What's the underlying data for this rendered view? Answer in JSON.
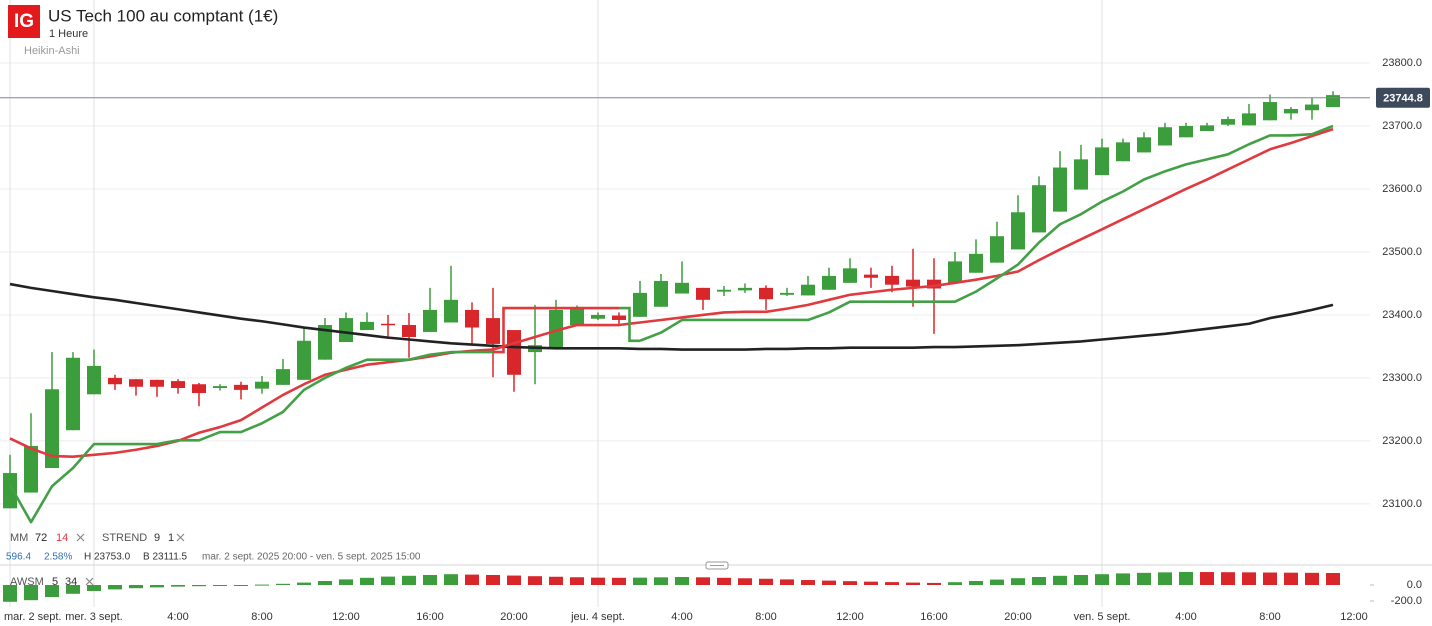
{
  "chart_data": {
    "type": "candlestick",
    "logo": "IG",
    "title": "US Tech 100 au comptant (1€)",
    "subtitle": "1 Heure",
    "chart_style": "Heikin-Ashi",
    "info": [
      "596.4",
      "2.58%",
      "H 23753.0",
      "B 23111.5",
      "mar. 2 sept. 2025 20:00 - ven. 5 sept. 2025 15:00"
    ],
    "legend": [
      {
        "name": "MM",
        "params": [
          "72",
          "14"
        ]
      },
      {
        "name": "STREND",
        "params": [
          "9",
          "1"
        ]
      }
    ],
    "categories": [
      "mar. 2 sept.",
      null,
      null,
      null,
      "mer. 3 sept.",
      null,
      null,
      null,
      "4:00",
      null,
      null,
      null,
      "8:00",
      null,
      null,
      null,
      "12:00",
      null,
      null,
      null,
      "16:00",
      null,
      null,
      null,
      "20:00",
      null,
      null,
      null,
      "jeu. 4 sept.",
      null,
      null,
      null,
      "4:00",
      null,
      null,
      null,
      "8:00",
      null,
      null,
      null,
      "12:00",
      null,
      null,
      null,
      "16:00",
      null,
      null,
      null,
      "20:00",
      null,
      null,
      null,
      "ven. 5 sept.",
      null,
      null,
      null,
      "4:00",
      null,
      null,
      null,
      "8:00",
      null,
      null,
      null,
      "12:00"
    ],
    "open": [
      23093,
      23118,
      23157,
      23217,
      23274,
      23300,
      23298,
      23297,
      23295,
      23290,
      23284,
      23289,
      23283,
      23289,
      23297,
      23329,
      23357,
      23376,
      23386,
      23384,
      23373,
      23388,
      23408,
      23395,
      23376,
      23341,
      23348,
      23384,
      23394,
      23399,
      23397,
      23413,
      23434,
      23443,
      23437,
      23439,
      23443,
      23432,
      23431,
      23440,
      23451,
      23464,
      23462,
      23456,
      23456,
      23451,
      23467,
      23483,
      23504,
      23531,
      23564,
      23599,
      23622,
      23644,
      23658,
      23669,
      23682,
      23692,
      23702,
      23701,
      23709,
      23720,
      23725,
      23730,
      null
    ],
    "high": [
      23178,
      23244,
      23341,
      23341,
      23345,
      23305,
      23298,
      23297,
      23298,
      23292,
      23290,
      23294,
      23303,
      23330,
      23380,
      23395,
      23404,
      23404,
      23400,
      23403,
      23443,
      23478,
      23420,
      23443,
      23376,
      23416,
      23424,
      23415,
      23404,
      23404,
      23454,
      23465,
      23485,
      23443,
      23446,
      23450,
      23447,
      23443,
      23462,
      23475,
      23490,
      23475,
      23478,
      23505,
      23490,
      23500,
      23520,
      23548,
      23590,
      23620,
      23660,
      23670,
      23680,
      23680,
      23690,
      23705,
      23705,
      23705,
      23715,
      23735,
      23750,
      23730,
      23745,
      23755,
      null
    ],
    "low": [
      23093,
      23118,
      23157,
      23217,
      23274,
      23281,
      23272,
      23270,
      23275,
      23255,
      23280,
      23266,
      23275,
      23289,
      23297,
      23329,
      23357,
      23376,
      23362,
      23332,
      23373,
      23388,
      23353,
      23301,
      23278,
      23290,
      23348,
      23384,
      23392,
      23385,
      23397,
      23413,
      23434,
      23408,
      23430,
      23435,
      23408,
      23430,
      23431,
      23440,
      23451,
      23443,
      23436,
      23413,
      23370,
      23451,
      23467,
      23483,
      23504,
      23531,
      23564,
      23599,
      23622,
      23644,
      23658,
      23669,
      23682,
      23692,
      23700,
      23701,
      23709,
      23710,
      23710,
      23730,
      null
    ],
    "close": [
      23149,
      23192,
      23282,
      23332,
      23319,
      23290,
      23286,
      23286,
      23284,
      23276,
      23287,
      23281,
      23294,
      23314,
      23359,
      23384,
      23395,
      23389,
      23384,
      23365,
      23408,
      23424,
      23380,
      23354,
      23305,
      23352,
      23408,
      23410,
      23400,
      23392,
      23435,
      23454,
      23451,
      23424,
      23440,
      23443,
      23425,
      23435,
      23448,
      23462,
      23474,
      23459,
      23448,
      23445,
      23442,
      23485,
      23497,
      23525,
      23563,
      23606,
      23634,
      23647,
      23666,
      23674,
      23682,
      23698,
      23700,
      23701,
      23711,
      23720,
      23738,
      23727,
      23734,
      23749,
      null
    ],
    "up_color": "#3c9d3c",
    "down_color": "#d9262b",
    "series": [
      {
        "color": "#222222",
        "values": [
          23449,
          23443,
          23438,
          23433,
          23428,
          23424,
          23419,
          23414,
          23409,
          23404,
          23399,
          23394,
          23390,
          23385,
          23380,
          23376,
          23372,
          23368,
          23364,
          23361,
          23358,
          23355,
          23353,
          23351,
          23349,
          23348,
          23347,
          23347,
          23347,
          23347,
          23346,
          23346,
          23345,
          23345,
          23345,
          23345,
          23346,
          23346,
          23347,
          23347,
          23348,
          23348,
          23348,
          23348,
          23349,
          23349,
          23350,
          23351,
          23352,
          23354,
          23356,
          23358,
          23361,
          23364,
          23367,
          23370,
          23374,
          23378,
          23382,
          23386,
          23395,
          23401,
          23408,
          23416,
          null
        ]
      },
      {
        "color": "#e0393e",
        "values": [
          23204,
          23188,
          23176,
          23175,
          23178,
          23181,
          23186,
          23192,
          23200,
          23213,
          23222,
          23233,
          23253,
          23273,
          23290,
          23305,
          23313,
          23321,
          23325,
          23329,
          23334,
          23340,
          23343,
          23345,
          23355,
          23365,
          23375,
          23384,
          23384,
          23384,
          23388,
          23392,
          23396,
          23400,
          23404,
          23405,
          23405,
          23410,
          23416,
          23424,
          23432,
          23436,
          23440,
          23443,
          23446,
          23451,
          23456,
          23462,
          23469,
          23487,
          23504,
          23520,
          23536,
          23552,
          23568,
          23584,
          23600,
          23615,
          23631,
          23647,
          23663,
          23673,
          23684,
          23695,
          null
        ]
      },
      {
        "color": "#43a047",
        "down_color": "#e0393e",
        "values": [
          23130,
          23071,
          23128,
          23157,
          23195,
          23195,
          23195,
          23195,
          23201,
          23201,
          23214,
          23214,
          23228,
          23246,
          23281,
          23300,
          23316,
          23329,
          23329,
          23329,
          23337,
          23341,
          23341,
          23341,
          23411,
          23411,
          23411,
          23411,
          23411,
          23411,
          23359,
          23372,
          23392,
          23392,
          23392,
          23392,
          23392,
          23392,
          23392,
          23404,
          23421,
          23421,
          23421,
          23421,
          23421,
          23421,
          23437,
          23458,
          23480,
          23515,
          23544,
          23560,
          23580,
          23596,
          23615,
          23628,
          23639,
          23647,
          23655,
          23671,
          23685,
          23685,
          23687,
          23700,
          null
        ]
      }
    ],
    "last_price": 23744.8,
    "last_price_color": "#3d4a5c",
    "ylim": [
      23030,
      23900
    ],
    "yticks": [
      {
        "value": 23800,
        "label": "23800.0"
      },
      {
        "value": 23700,
        "label": "23700.0"
      },
      {
        "value": 23600,
        "label": "23600.0"
      },
      {
        "value": 23500,
        "label": "23500.0"
      },
      {
        "value": 23400,
        "label": "23400.0"
      },
      {
        "value": 23300,
        "label": "23300.0"
      },
      {
        "value": 23200,
        "label": "23200.0"
      },
      {
        "value": 23100,
        "label": "23100.0"
      }
    ],
    "grid": true,
    "oscillator": {
      "name": "AWSM",
      "params": [
        "5",
        "34"
      ],
      "values": [
        -210,
        -190,
        -150,
        -110,
        -75,
        -55,
        -40,
        -30,
        -20,
        -15,
        -10,
        -5,
        5,
        15,
        30,
        50,
        70,
        90,
        105,
        115,
        125,
        135,
        130,
        125,
        118,
        110,
        103,
        97,
        92,
        90,
        92,
        96,
        100,
        96,
        90,
        84,
        78,
        70,
        62,
        55,
        48,
        42,
        36,
        30,
        26,
        35,
        50,
        68,
        85,
        100,
        115,
        125,
        135,
        145,
        152,
        158,
        163,
        162,
        160,
        158,
        156,
        154,
        152,
        150,
        null
      ],
      "up_color": "#3c9d3c",
      "down_color": "#d9262b",
      "ylim": [
        -275,
        225
      ],
      "yticks": [
        {
          "value": 0,
          "label": "0.0"
        },
        {
          "value": -200,
          "label": "-200.0"
        }
      ]
    }
  }
}
